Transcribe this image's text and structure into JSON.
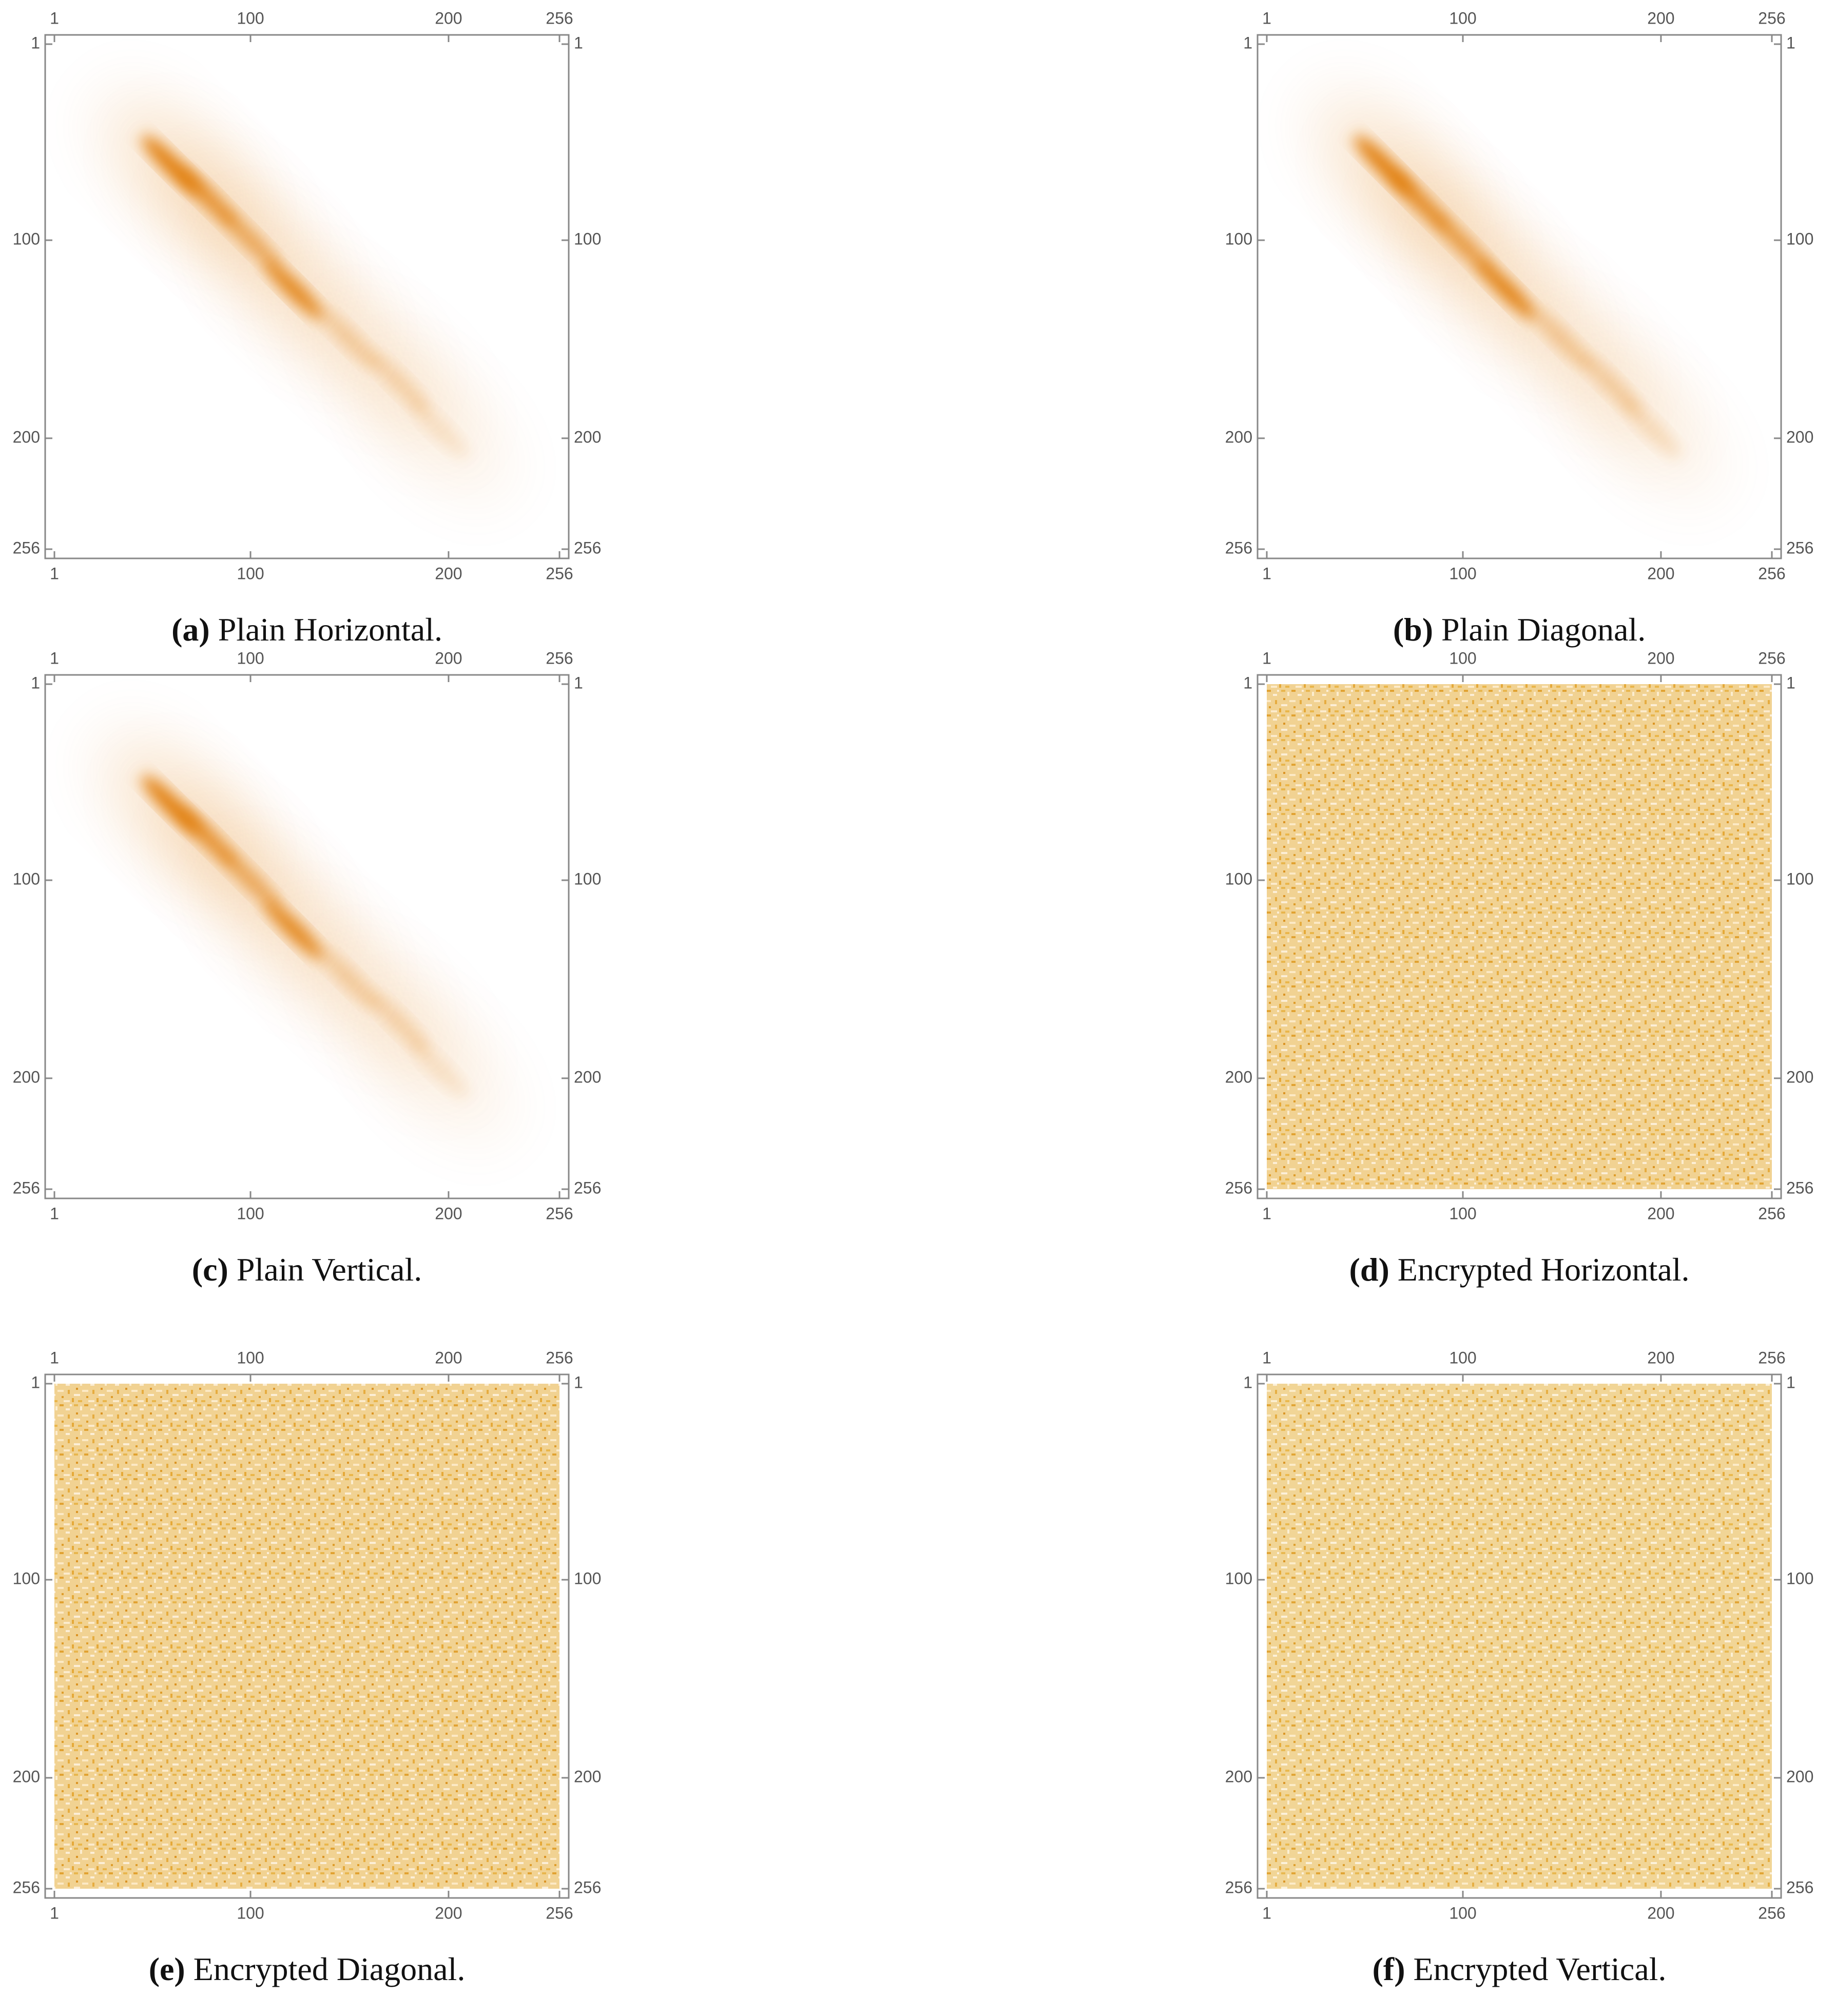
{
  "chart_data": [
    {
      "type": "density",
      "label": "(a)",
      "caption": "Plain Horizontal.",
      "xlim": [
        1,
        256
      ],
      "ylim": [
        1,
        256
      ],
      "y_inverted": true,
      "xticks": [
        1,
        100,
        200,
        256
      ],
      "yticks": [
        1,
        100,
        200,
        256
      ],
      "color": "#e07800",
      "x": [
        60,
        78,
        100,
        122,
        150,
        175,
        195
      ],
      "y": [
        62,
        78,
        100,
        125,
        150,
        172,
        195
      ],
      "values": [
        1,
        0.8,
        0.6,
        0.9,
        0.3,
        0.25,
        0.15
      ]
    },
    {
      "type": "density",
      "label": "(b)",
      "caption": "Plain Diagonal.",
      "xlim": [
        1,
        256
      ],
      "ylim": [
        1,
        256
      ],
      "y_inverted": true,
      "xticks": [
        1,
        100,
        200,
        256
      ],
      "yticks": [
        1,
        100,
        200,
        256
      ],
      "color": "#e07800",
      "x": [
        60,
        78,
        100,
        122,
        150,
        175,
        195
      ],
      "y": [
        62,
        80,
        102,
        125,
        150,
        173,
        195
      ],
      "values": [
        1,
        0.85,
        0.7,
        0.95,
        0.35,
        0.3,
        0.2
      ]
    },
    {
      "type": "density",
      "label": "(c)",
      "caption": "Plain Vertical.",
      "xlim": [
        1,
        256
      ],
      "ylim": [
        1,
        256
      ],
      "y_inverted": true,
      "xticks": [
        1,
        100,
        200,
        256
      ],
      "yticks": [
        1,
        100,
        200,
        256
      ],
      "color": "#e07800",
      "x": [
        60,
        78,
        100,
        122,
        150,
        175,
        195
      ],
      "y": [
        62,
        78,
        100,
        125,
        150,
        172,
        195
      ],
      "values": [
        1,
        0.8,
        0.6,
        0.9,
        0.3,
        0.25,
        0.15
      ]
    },
    {
      "type": "uniform",
      "label": "(d)",
      "caption": "Encrypted Horizontal.",
      "xlim": [
        1,
        256
      ],
      "ylim": [
        1,
        256
      ],
      "y_inverted": true,
      "xticks": [
        1,
        100,
        200,
        256
      ],
      "yticks": [
        1,
        100,
        200,
        256
      ],
      "color": "#e8b040"
    },
    {
      "type": "uniform",
      "label": "(e)",
      "caption": "Encrypted Diagonal.",
      "xlim": [
        1,
        256
      ],
      "ylim": [
        1,
        256
      ],
      "y_inverted": true,
      "xticks": [
        1,
        100,
        200,
        256
      ],
      "yticks": [
        1,
        100,
        200,
        256
      ],
      "color": "#e8b040"
    },
    {
      "type": "uniform",
      "label": "(f)",
      "caption": "Encrypted Vertical.",
      "xlim": [
        1,
        256
      ],
      "ylim": [
        1,
        256
      ],
      "y_inverted": true,
      "xticks": [
        1,
        100,
        200,
        256
      ],
      "yticks": [
        1,
        100,
        200,
        256
      ],
      "color": "#e8c060"
    }
  ]
}
